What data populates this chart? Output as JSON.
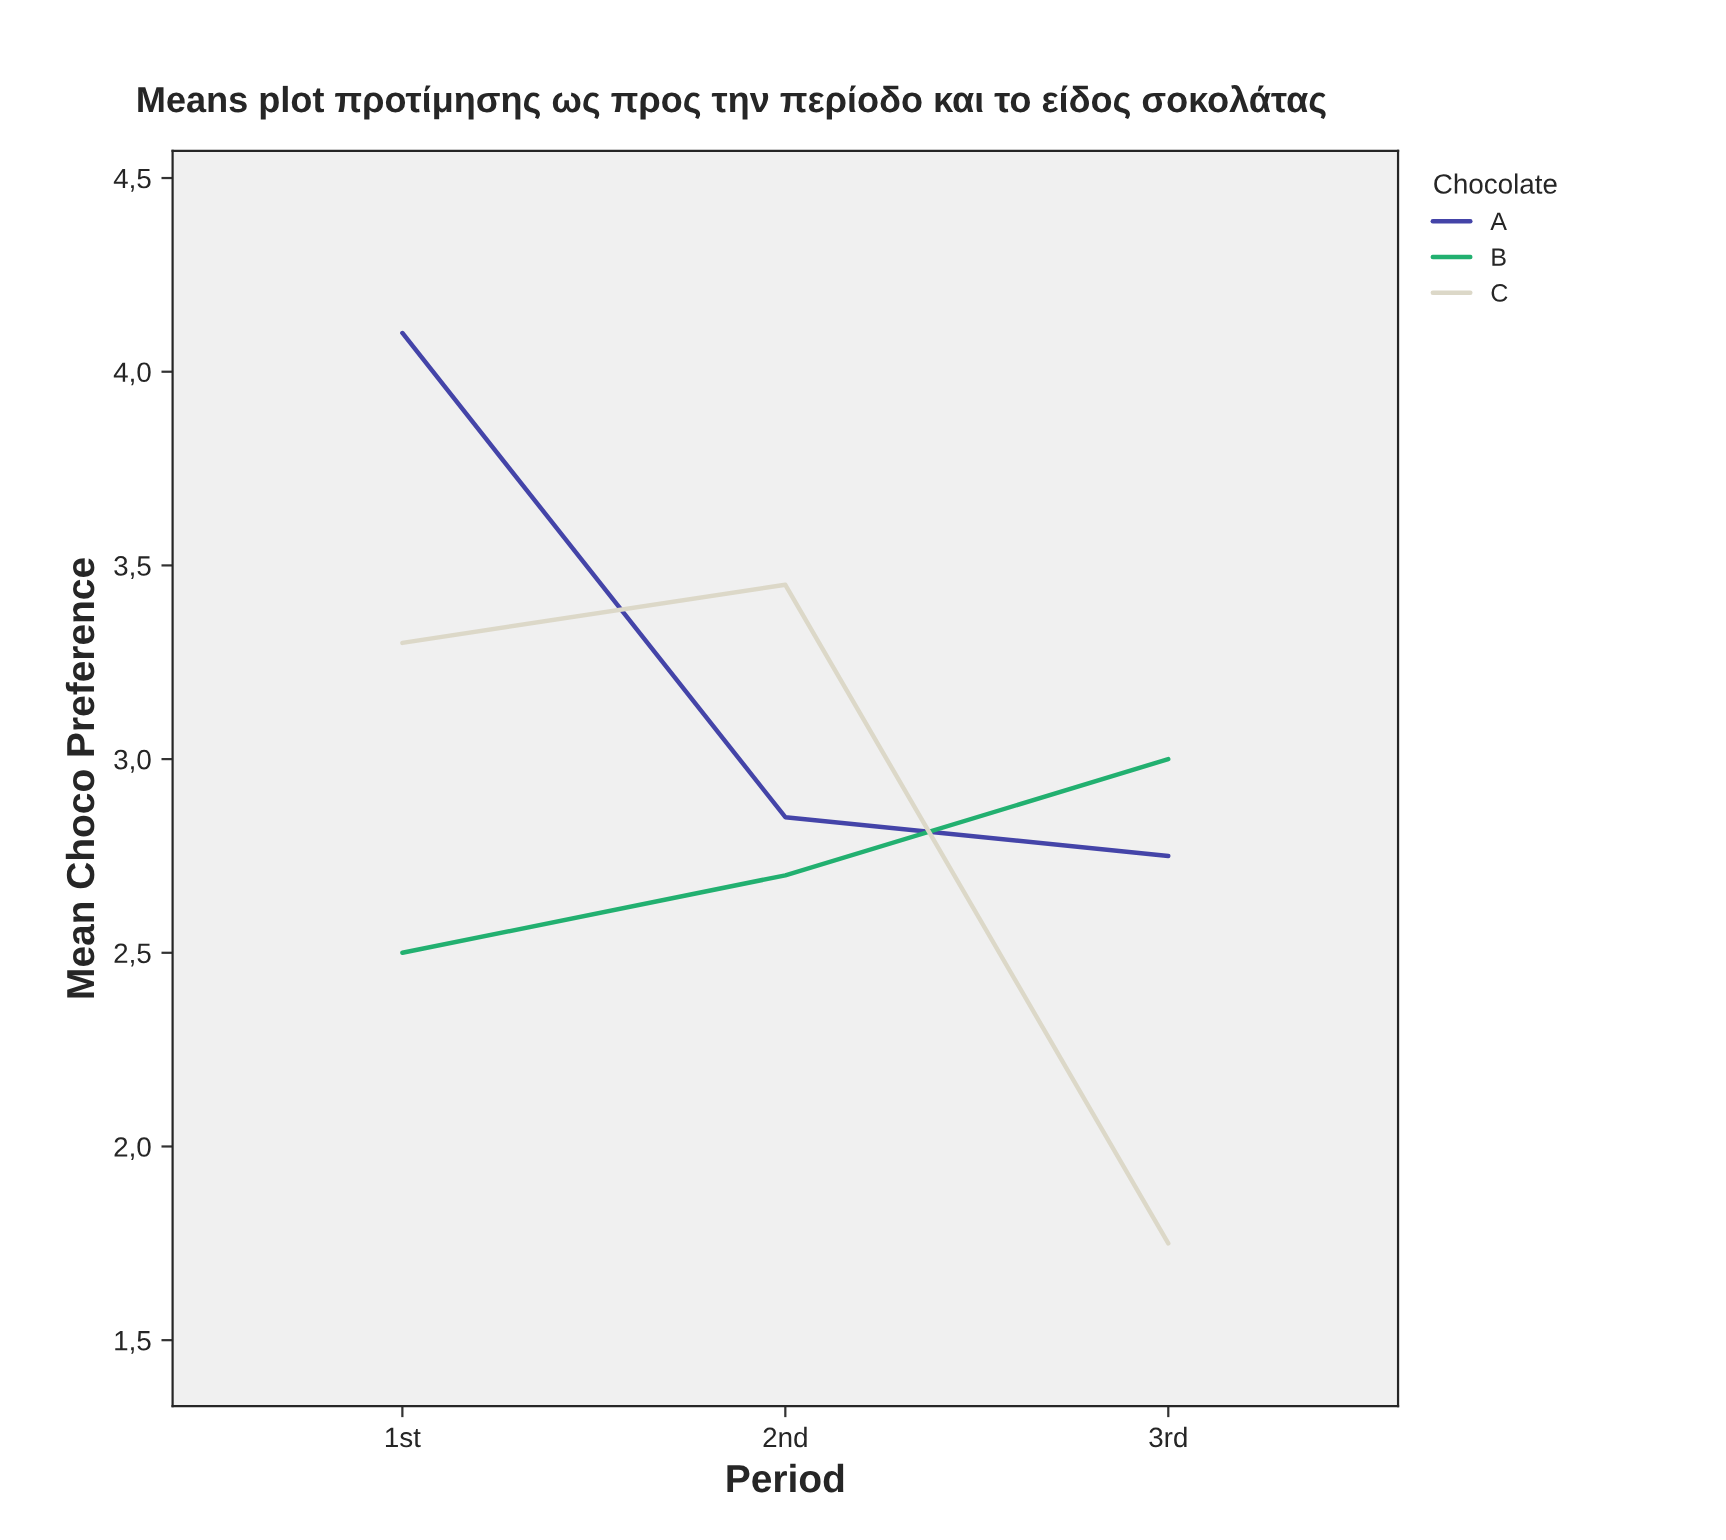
{
  "chart_data": {
    "type": "line",
    "title": "Means plot προτίμησης ως προς την περίοδο και το είδος σοκολάτας",
    "xlabel": "Period",
    "ylabel": "Mean Choco Preference",
    "legend_title": "Chocolate",
    "legend": "top right",
    "grid": false,
    "categories": [
      "1st",
      "2nd",
      "3rd"
    ],
    "series": [
      {
        "name": "A",
        "color": "#4444a8",
        "values": [
          4.1,
          2.85,
          2.75
        ]
      },
      {
        "name": "B",
        "color": "#22b070",
        "values": [
          2.5,
          2.7,
          3.0
        ]
      },
      {
        "name": "C",
        "color": "#dcd8c8",
        "values": [
          3.3,
          3.45,
          1.75
        ]
      }
    ],
    "ylim": [
      1.33,
      4.57
    ],
    "yticks": [
      {
        "value": 1.5,
        "label": "1,5"
      },
      {
        "value": 2.0,
        "label": "2,0"
      },
      {
        "value": 2.5,
        "label": "2,5"
      },
      {
        "value": 3.0,
        "label": "3,0"
      },
      {
        "value": 3.5,
        "label": "3,5"
      },
      {
        "value": 4.0,
        "label": "4,0"
      },
      {
        "value": 4.5,
        "label": "4,5"
      }
    ]
  }
}
